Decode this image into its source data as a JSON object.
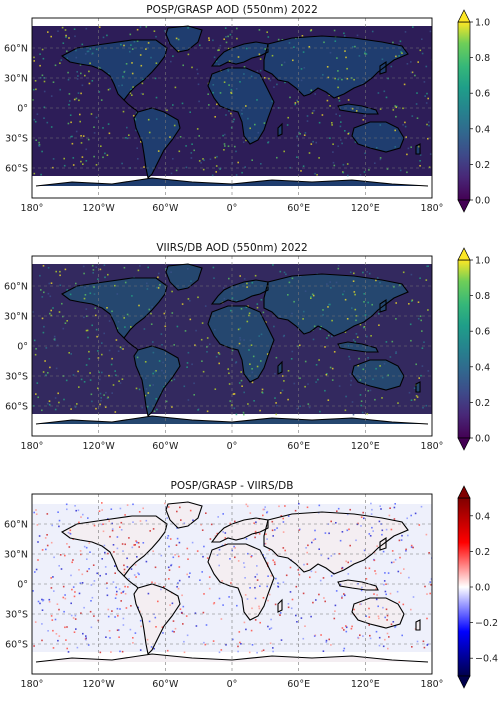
{
  "chart_data": [
    {
      "type": "heatmap",
      "title": "POSP/GRASP AOD (550nm) 2022",
      "map_projection": "equirectangular",
      "x_ticks": [
        "180°",
        "120°W",
        "60°W",
        "0°",
        "60°E",
        "120°E",
        "180°"
      ],
      "y_ticks": [
        "60°N",
        "30°N",
        "0°",
        "30°S",
        "60°S"
      ],
      "grid": true,
      "grid_style": "dashed",
      "land_color_fill": "#1f3d6f",
      "ocean_fill": "#2d1d58",
      "no_data_color": "#ffffff",
      "colorbar": {
        "colormap": "viridis",
        "range": [
          0.0,
          1.0
        ],
        "ticks": [
          "0.0",
          "0.2",
          "0.4",
          "0.6",
          "0.8",
          "1.0"
        ],
        "extend": "both"
      }
    },
    {
      "type": "heatmap",
      "title": "VIIRS/DB AOD (550nm) 2022",
      "map_projection": "equirectangular",
      "x_ticks": [
        "180°",
        "120°W",
        "60°W",
        "0°",
        "60°E",
        "120°E",
        "180°"
      ],
      "y_ticks": [
        "60°N",
        "30°N",
        "0°",
        "30°S",
        "60°S"
      ],
      "grid": true,
      "grid_style": "dashed",
      "land_color_fill": "#25476f",
      "ocean_fill": "#33295f",
      "no_data_color": "#ffffff",
      "colorbar": {
        "colormap": "viridis",
        "range": [
          0.0,
          1.0
        ],
        "ticks": [
          "0.0",
          "0.2",
          "0.4",
          "0.6",
          "0.8",
          "1.0"
        ],
        "extend": "both"
      }
    },
    {
      "type": "heatmap",
      "title": "POSP/GRASP - VIIRS/DB",
      "map_projection": "equirectangular",
      "x_ticks": [
        "180°",
        "120°W",
        "60°W",
        "0°",
        "60°E",
        "120°E",
        "180°"
      ],
      "y_ticks": [
        "60°N",
        "30°N",
        "0°",
        "30°S",
        "60°S"
      ],
      "grid": true,
      "grid_style": "dashed",
      "land_color_fill": "#f4eef2",
      "ocean_fill": "#eef0fb",
      "no_data_color": "#ffffff",
      "colorbar": {
        "colormap": "seismic",
        "range": [
          -0.5,
          0.5
        ],
        "ticks": [
          "0.4",
          "0.2",
          "0.0",
          "−0.2",
          "−0.4"
        ],
        "extend": "both"
      }
    }
  ]
}
